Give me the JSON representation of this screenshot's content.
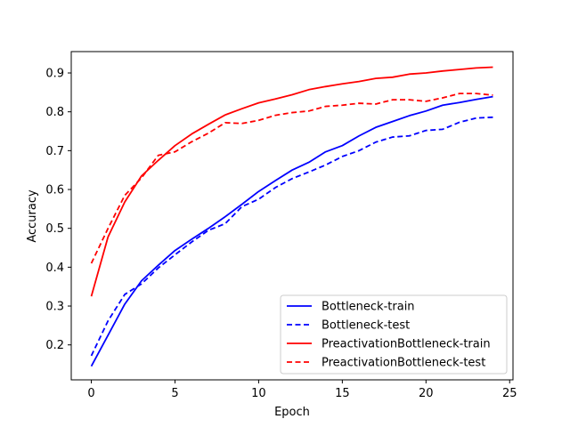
{
  "chart_data": {
    "type": "line",
    "title": "",
    "xlabel": "Epoch",
    "ylabel": "Accuracy",
    "xlim": [
      -1.2,
      25.2
    ],
    "ylim": [
      0.11,
      0.955
    ],
    "xticks": [
      0,
      5,
      10,
      15,
      20,
      25
    ],
    "yticks": [
      0.2,
      0.3,
      0.4,
      0.5,
      0.6,
      0.7,
      0.8,
      0.9
    ],
    "grid": false,
    "legend_position": "lower-right",
    "x": [
      0,
      1,
      2,
      3,
      4,
      5,
      6,
      7,
      8,
      9,
      10,
      11,
      12,
      13,
      14,
      15,
      16,
      17,
      18,
      19,
      20,
      21,
      22,
      23,
      24
    ],
    "series": [
      {
        "name": "Bottleneck-train",
        "color": "#0000ff",
        "style": "solid",
        "values": [
          0.145,
          0.225,
          0.305,
          0.365,
          0.405,
          0.443,
          0.472,
          0.5,
          0.53,
          0.562,
          0.595,
          0.623,
          0.65,
          0.67,
          0.697,
          0.713,
          0.738,
          0.76,
          0.775,
          0.79,
          0.802,
          0.817,
          0.824,
          0.832,
          0.839
        ]
      },
      {
        "name": "Bottleneck-test",
        "color": "#0000ff",
        "style": "dashed",
        "values": [
          0.172,
          0.262,
          0.33,
          0.357,
          0.398,
          0.432,
          0.465,
          0.495,
          0.512,
          0.556,
          0.575,
          0.605,
          0.628,
          0.645,
          0.663,
          0.685,
          0.7,
          0.722,
          0.735,
          0.738,
          0.752,
          0.755,
          0.773,
          0.784,
          0.786
        ]
      },
      {
        "name": "PreactivationBottleneck-train",
        "color": "#ff0000",
        "style": "solid",
        "values": [
          0.325,
          0.478,
          0.568,
          0.635,
          0.675,
          0.713,
          0.743,
          0.768,
          0.792,
          0.808,
          0.823,
          0.833,
          0.844,
          0.857,
          0.865,
          0.872,
          0.878,
          0.886,
          0.889,
          0.897,
          0.9,
          0.905,
          0.909,
          0.913,
          0.915
        ]
      },
      {
        "name": "PreactivationBottleneck-test",
        "color": "#ff0000",
        "style": "dashed",
        "values": [
          0.41,
          0.5,
          0.585,
          0.63,
          0.688,
          0.697,
          0.723,
          0.745,
          0.772,
          0.77,
          0.778,
          0.791,
          0.798,
          0.802,
          0.814,
          0.817,
          0.822,
          0.82,
          0.831,
          0.831,
          0.827,
          0.836,
          0.847,
          0.847,
          0.843
        ]
      }
    ]
  }
}
